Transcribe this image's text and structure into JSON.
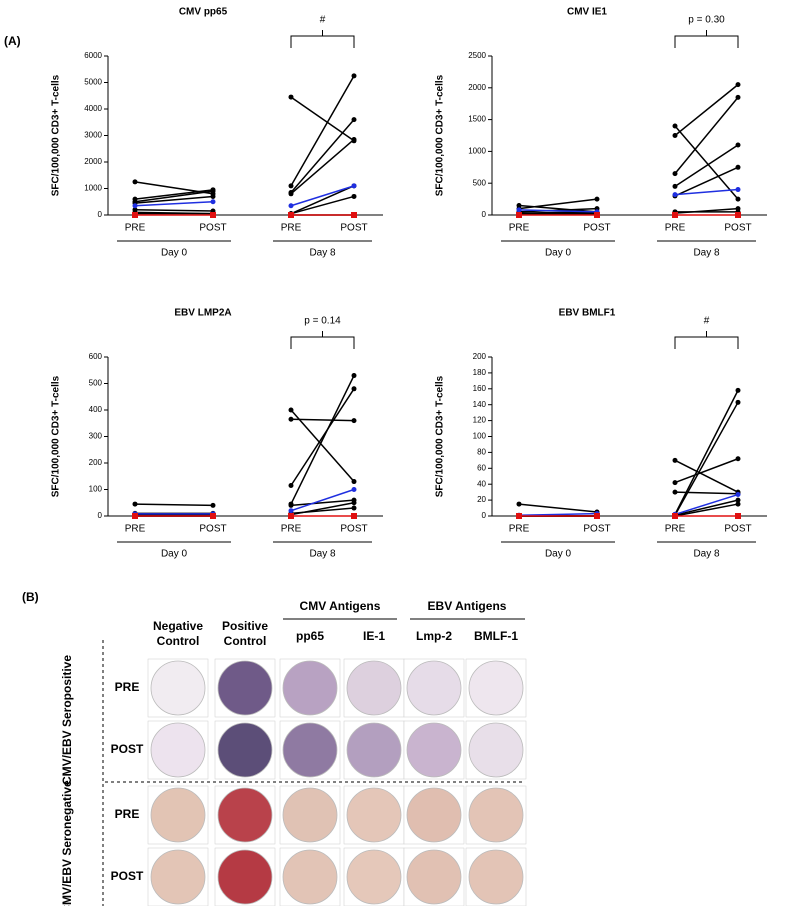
{
  "panel_a_label": "(A)",
  "panel_b_label": "(B)",
  "chart_data": [
    {
      "type": "line",
      "title": "CMV pp65",
      "ylabel": "SFC/100,000 CD3+ T-cells",
      "annotation": "#",
      "categories": [
        "PRE",
        "POST",
        "PRE",
        "POST"
      ],
      "groups": [
        "Day 0",
        "Day 8"
      ],
      "ylim": [
        0,
        6000
      ],
      "yticks": [
        0,
        1000,
        2000,
        3000,
        4000,
        5000,
        6000
      ],
      "series": [
        {
          "color": "#000000",
          "values": [
            1250,
            800,
            4450,
            2800
          ]
        },
        {
          "color": "#000000",
          "values": [
            600,
            950,
            1100,
            5250
          ]
        },
        {
          "color": "#000000",
          "values": [
            500,
            900,
            850,
            3600
          ]
        },
        {
          "color": "#000000",
          "values": [
            450,
            700,
            800,
            2850
          ]
        },
        {
          "color": "#000000",
          "values": [
            200,
            150,
            50,
            1100
          ]
        },
        {
          "color": "#000000",
          "values": [
            100,
            50,
            50,
            700
          ]
        },
        {
          "color": "#000000",
          "values": [
            50,
            50,
            0,
            0
          ]
        },
        {
          "color": "#1f2fe0",
          "values": [
            350,
            500,
            350,
            1100
          ]
        },
        {
          "color": "#e01010",
          "values": [
            0,
            0,
            0,
            0
          ]
        }
      ]
    },
    {
      "type": "line",
      "title": "CMV IE1",
      "ylabel": "SFC/100,000 CD3+ T-cells",
      "annotation": "p = 0.30",
      "categories": [
        "PRE",
        "POST",
        "PRE",
        "POST"
      ],
      "groups": [
        "Day 0",
        "Day 8"
      ],
      "ylim": [
        0,
        2500
      ],
      "yticks": [
        0,
        500,
        1000,
        1500,
        2000,
        2500
      ],
      "series": [
        {
          "color": "#000000",
          "values": [
            150,
            50,
            1400,
            250
          ]
        },
        {
          "color": "#000000",
          "values": [
            100,
            250,
            1250,
            2050
          ]
        },
        {
          "color": "#000000",
          "values": [
            50,
            100,
            650,
            1850
          ]
        },
        {
          "color": "#000000",
          "values": [
            30,
            50,
            450,
            1100
          ]
        },
        {
          "color": "#000000",
          "values": [
            20,
            30,
            300,
            750
          ]
        },
        {
          "color": "#000000",
          "values": [
            10,
            20,
            50,
            50
          ]
        },
        {
          "color": "#000000",
          "values": [
            5,
            10,
            30,
            100
          ]
        },
        {
          "color": "#1f2fe0",
          "values": [
            80,
            50,
            320,
            400
          ]
        },
        {
          "color": "#e01010",
          "values": [
            0,
            0,
            0,
            0
          ]
        }
      ]
    },
    {
      "type": "line",
      "title": "EBV LMP2A",
      "ylabel": "SFC/100,000 CD3+ T-cells",
      "annotation": "p = 0.14",
      "categories": [
        "PRE",
        "POST",
        "PRE",
        "POST"
      ],
      "groups": [
        "Day 0",
        "Day 8"
      ],
      "ylim": [
        0,
        600
      ],
      "yticks": [
        0,
        100,
        200,
        300,
        400,
        500,
        600
      ],
      "series": [
        {
          "color": "#000000",
          "values": [
            45,
            40,
            400,
            130
          ]
        },
        {
          "color": "#000000",
          "values": [
            10,
            10,
            365,
            360
          ]
        },
        {
          "color": "#000000",
          "values": [
            5,
            5,
            115,
            480
          ]
        },
        {
          "color": "#000000",
          "values": [
            5,
            5,
            45,
            530
          ]
        },
        {
          "color": "#000000",
          "values": [
            0,
            0,
            40,
            60
          ]
        },
        {
          "color": "#000000",
          "values": [
            0,
            0,
            10,
            30
          ]
        },
        {
          "color": "#000000",
          "values": [
            0,
            0,
            5,
            50
          ]
        },
        {
          "color": "#1f2fe0",
          "values": [
            8,
            8,
            20,
            100
          ]
        },
        {
          "color": "#e01010",
          "values": [
            0,
            0,
            0,
            0
          ]
        }
      ]
    },
    {
      "type": "line",
      "title": "EBV BMLF1",
      "ylabel": "SFC/100,000 CD3+ T-cells",
      "annotation": "#",
      "categories": [
        "PRE",
        "POST",
        "PRE",
        "POST"
      ],
      "groups": [
        "Day 0",
        "Day 8"
      ],
      "ylim": [
        0,
        200
      ],
      "yticks": [
        0,
        20,
        40,
        60,
        80,
        100,
        120,
        140,
        160,
        180,
        200
      ],
      "series": [
        {
          "color": "#000000",
          "values": [
            15,
            5,
            70,
            30
          ]
        },
        {
          "color": "#000000",
          "values": [
            0,
            0,
            42,
            72
          ]
        },
        {
          "color": "#000000",
          "values": [
            0,
            0,
            30,
            28
          ]
        },
        {
          "color": "#000000",
          "values": [
            0,
            0,
            2,
            158
          ]
        },
        {
          "color": "#000000",
          "values": [
            0,
            0,
            1,
            143
          ]
        },
        {
          "color": "#000000",
          "values": [
            0,
            0,
            1,
            20
          ]
        },
        {
          "color": "#000000",
          "values": [
            0,
            0,
            0,
            15
          ]
        },
        {
          "color": "#1f2fe0",
          "values": [
            1,
            3,
            2,
            27
          ]
        },
        {
          "color": "#e01010",
          "values": [
            0,
            0,
            0,
            0
          ]
        }
      ]
    }
  ],
  "well_grid": {
    "column_headers": [
      [
        "Negative",
        "Control"
      ],
      [
        "Positive",
        "Control"
      ],
      [
        "pp65"
      ],
      [
        "IE-1"
      ],
      [
        "Lmp-2"
      ],
      [
        "BMLF-1"
      ]
    ],
    "group_headers": [
      "CMV Antigens",
      "EBV Antigens"
    ],
    "row_groups": [
      "CMV/EBV Seropositive",
      "CMV/EBV Seronegative"
    ],
    "row_labels": [
      "PRE",
      "POST",
      "PRE",
      "POST"
    ]
  }
}
